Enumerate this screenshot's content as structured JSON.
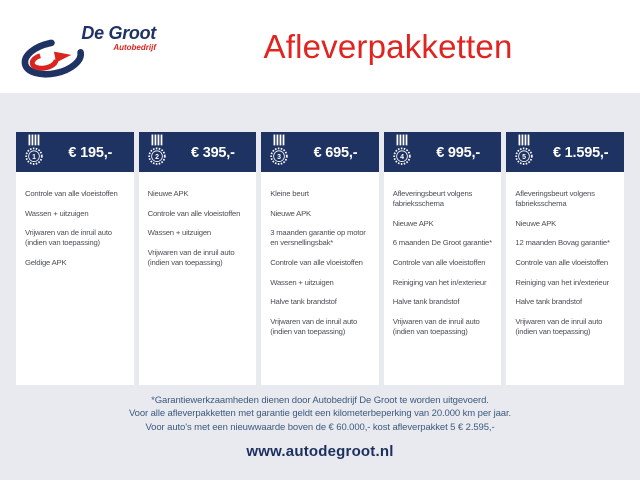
{
  "brand": {
    "name": "De Groot",
    "subtitle": "Autobedrijf"
  },
  "title": "Afleverpakketten",
  "packages": [
    {
      "number": "1",
      "price": "€ 195,-",
      "items": [
        "Controle van alle vloeistoffen",
        "Wassen + uitzuigen",
        "Vrijwaren van de inruil auto (indien van toepassing)",
        "Geldige APK"
      ]
    },
    {
      "number": "2",
      "price": "€ 395,-",
      "items": [
        "Nieuwe APK",
        "Controle van alle vloeistoffen",
        "Wassen + uitzuigen",
        "Vrijwaren van de inruil auto (indien van toepassing)"
      ]
    },
    {
      "number": "3",
      "price": "€ 695,-",
      "items": [
        "Kleine beurt",
        "Nieuwe APK",
        "3 maanden garantie op motor en versnellingsbak*",
        "Controle van alle vloeistoffen",
        "Wassen + uitzuigen",
        "Halve tank brandstof",
        "Vrijwaren van de inruil auto (indien van toepassing)"
      ]
    },
    {
      "number": "4",
      "price": "€ 995,-",
      "items": [
        "Afleveringsbeurt volgens fabrieksschema",
        "Nieuwe APK",
        "6 maanden De Groot garantie*",
        "Controle van alle vloeistoffen",
        "Reiniging van het in/exterieur",
        "Halve tank brandstof",
        "Vrijwaren van de inruil auto (indien van toepassing)"
      ]
    },
    {
      "number": "5",
      "price": "€ 1.595,-",
      "items": [
        "Afleveringsbeurt volgens fabrieksschema",
        "Nieuwe APK",
        "12 maanden Bovag garantie*",
        "Controle van alle vloeistoffen",
        "Reiniging van het in/exterieur",
        "Halve tank brandstof",
        "Vrijwaren van de inruil auto (indien van toepassing)"
      ]
    }
  ],
  "footer": {
    "notes": [
      "*Garantiewerkzaamheden dienen door Autobedrijf De Groot te worden uitgevoerd.",
      "Voor alle afleverpakketten met garantie geldt een kilometerbeperking van 20.000 km per jaar.",
      "Voor auto's met een nieuwwaarde boven de € 60.000,- kost afleverpakket 5 € 2.595,-"
    ],
    "website": "www.autodegroot.nl"
  },
  "colors": {
    "navy": "#1f3363",
    "title_red": "#e02420",
    "logo_red": "#d9251f",
    "background": "#e9eaef",
    "body_text": "#4b4f55",
    "note_text": "#3c5a7c"
  }
}
